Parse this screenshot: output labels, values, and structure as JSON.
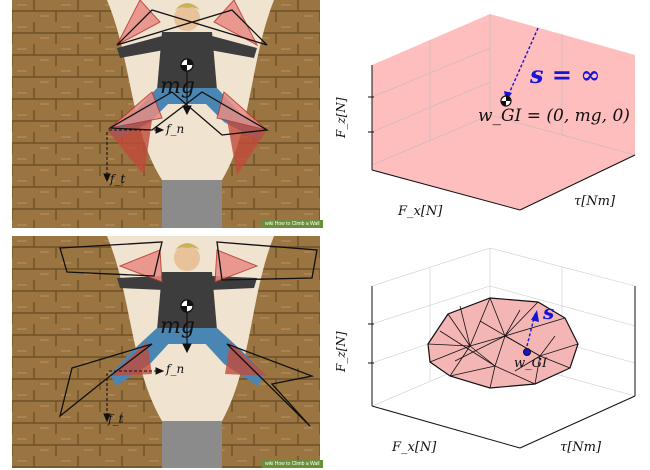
{
  "figure": {
    "photo_labels": {
      "weight": "mg",
      "normal_force": "f_n",
      "tangent_force": "f_t"
    },
    "watermark_text": "wiki How to Climb a Wall",
    "top_plot": {
      "y_axis": "F_z[N]",
      "x_axis": "F_x[N]",
      "z_axis": "τ[Nm]",
      "s_label": "s = ∞",
      "point_label": "w_GI = (0, mg, 0)"
    },
    "bottom_plot": {
      "y_axis": "F_z[N]",
      "x_axis": "F_x[N]",
      "z_axis": "τ[Nm]",
      "s_label": "s",
      "point_label": "w_GI"
    }
  },
  "colors": {
    "wall_brown": "#9a7541",
    "wall_dark": "#6e5128",
    "chimney_light": "#f0e3cf",
    "cone_red": "#e88c84",
    "hull_pink": "#f4b5b5",
    "box_pink": "#ffb3b3",
    "blue": "#1515d8"
  }
}
